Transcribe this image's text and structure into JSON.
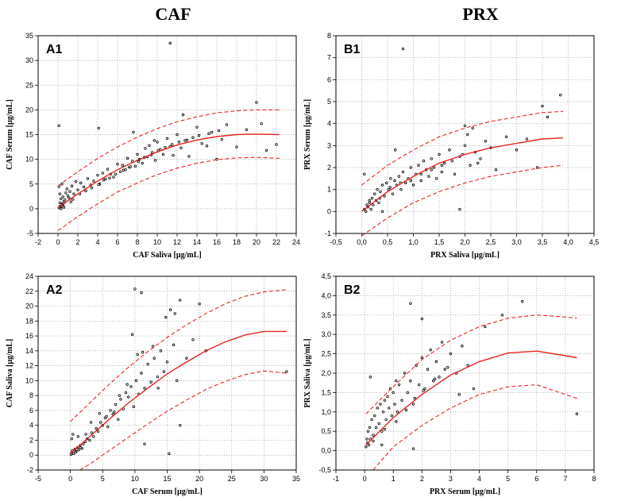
{
  "column_titles": [
    "CAF",
    "PRX"
  ],
  "chart_data": [
    {
      "type": "scatter",
      "panel_label": "A1",
      "xlabel": "CAF Saliva [µg/mL]",
      "ylabel": "CAF Serum [µg/mL]",
      "xlim": [
        -2,
        24
      ],
      "ylim": [
        -5,
        35
      ],
      "xticks": [
        -2,
        0,
        2,
        4,
        6,
        8,
        10,
        12,
        14,
        16,
        18,
        20,
        22,
        24
      ],
      "yticks": [
        -5,
        0,
        5,
        10,
        15,
        20,
        25,
        30,
        35
      ],
      "xtick_labels": [
        "-2",
        "0",
        "2",
        "4",
        "6",
        "8",
        "10",
        "12",
        "14",
        "16",
        "18",
        "20",
        "22",
        "24"
      ],
      "ytick_labels": [
        "-5",
        "0",
        "5",
        "10",
        "15",
        "20",
        "25",
        "30",
        "35"
      ],
      "grid": "dotted",
      "fit": {
        "x": [
          0,
          2,
          4,
          6,
          8,
          10,
          12,
          14,
          16,
          18,
          20,
          22.3
        ],
        "y": [
          0.2,
          3.0,
          5.6,
          7.9,
          9.8,
          11.5,
          12.9,
          13.9,
          14.6,
          15.0,
          15.1,
          15.0
        ]
      },
      "fit_upper": {
        "x": [
          0,
          2,
          4,
          6,
          8,
          10,
          12,
          14,
          16,
          18,
          20,
          22.3
        ],
        "y": [
          4.6,
          7.5,
          10.2,
          12.5,
          14.5,
          16.2,
          17.6,
          18.6,
          19.4,
          19.8,
          20.0,
          20.0
        ]
      },
      "fit_lower": {
        "x": [
          0,
          2,
          4,
          6,
          8,
          10,
          12,
          14,
          16,
          18,
          20,
          22.3
        ],
        "y": [
          -4.4,
          -1.6,
          1.0,
          3.4,
          5.2,
          6.9,
          8.2,
          9.2,
          9.9,
          10.3,
          10.4,
          10.2
        ]
      },
      "points": {
        "x": [
          0.1,
          0.2,
          0.3,
          0.4,
          0.5,
          0.6,
          0.2,
          0.3,
          0.5,
          0.7,
          0.8,
          1.0,
          0.1,
          0.4,
          0.9,
          1.2,
          1.4,
          1.6,
          1.8,
          2.0,
          2.3,
          2.6,
          3.0,
          3.3,
          3.6,
          4.0,
          4.2,
          4.5,
          4.8,
          5.0,
          5.3,
          5.6,
          6.0,
          6.3,
          6.5,
          6.8,
          7.0,
          7.2,
          7.5,
          7.8,
          8.0,
          8.2,
          8.5,
          8.8,
          9.0,
          9.2,
          9.5,
          9.8,
          10.0,
          10.3,
          10.6,
          11.0,
          11.3,
          11.6,
          12.0,
          12.4,
          12.8,
          13.2,
          13.6,
          14.0,
          14.5,
          15.0,
          15.5,
          16.0,
          16.5,
          17.0,
          18.0,
          19.0,
          20.0,
          20.5,
          21.0,
          22.0,
          0.2,
          0.5,
          1.1,
          1.5,
          2.2,
          2.8,
          3.4,
          4.1,
          4.6,
          5.2,
          5.8,
          6.6,
          7.3,
          8.1,
          8.7,
          9.4,
          10.1,
          10.8,
          11.5,
          12.2,
          13.0,
          14.2,
          15.2,
          16.2,
          0.1,
          4.1,
          11.3,
          0.3,
          0.6,
          1.3,
          7.6,
          9.7,
          12.6
        ],
        "y": [
          0.2,
          0.5,
          0.1,
          1.0,
          0.6,
          1.5,
          3.0,
          2.0,
          2.4,
          1.8,
          3.2,
          2.6,
          4.5,
          5.0,
          4.0,
          3.5,
          4.6,
          3.0,
          5.5,
          3.8,
          5.2,
          4.4,
          6.1,
          4.8,
          5.6,
          6.8,
          5.0,
          7.2,
          6.0,
          8.0,
          7.0,
          6.4,
          9.0,
          7.5,
          8.8,
          7.9,
          10.2,
          8.4,
          9.6,
          8.6,
          11.0,
          10.0,
          9.2,
          12.2,
          10.5,
          12.8,
          11.4,
          9.8,
          13.5,
          12.0,
          11.0,
          14.2,
          12.6,
          10.8,
          15.0,
          12.3,
          13.8,
          10.6,
          14.4,
          16.5,
          13.2,
          12.7,
          15.5,
          10.0,
          14.0,
          17.0,
          12.5,
          16.0,
          21.5,
          17.2,
          11.8,
          13.0,
          1.2,
          0.9,
          2.2,
          1.9,
          3.0,
          3.6,
          4.2,
          4.9,
          5.8,
          6.2,
          7.0,
          7.8,
          8.5,
          9.5,
          10.4,
          10.9,
          11.8,
          12.4,
          13.0,
          13.5,
          13.9,
          14.8,
          15.2,
          15.8,
          16.8,
          16.3,
          33.5,
          0.0,
          0.3,
          1.4,
          15.5,
          13.8,
          19.0
        ]
      }
    },
    {
      "type": "scatter",
      "panel_label": "B1",
      "xlabel": "PRX Saliva [µg/mL]",
      "ylabel": "PRX Serum [µg/mL]",
      "xlim": [
        -0.5,
        4.5
      ],
      "ylim": [
        -1,
        8
      ],
      "xticks": [
        -0.5,
        0.0,
        0.5,
        1.0,
        1.5,
        2.0,
        2.5,
        3.0,
        3.5,
        4.0,
        4.5
      ],
      "yticks": [
        -1,
        0,
        1,
        2,
        3,
        4,
        5,
        6,
        7,
        8
      ],
      "xtick_labels": [
        "-0,5",
        "0,0",
        "0,5",
        "1,0",
        "1,5",
        "2,0",
        "2,5",
        "3,0",
        "3,5",
        "4,0",
        "4,5"
      ],
      "ytick_labels": [
        "-1",
        "0",
        "1",
        "2",
        "3",
        "4",
        "5",
        "6",
        "7",
        "8"
      ],
      "grid": "dotted",
      "fit": {
        "x": [
          0,
          0.5,
          1.0,
          1.5,
          2.0,
          2.5,
          3.0,
          3.5,
          3.9
        ],
        "y": [
          0.0,
          0.9,
          1.6,
          2.2,
          2.6,
          2.9,
          3.1,
          3.3,
          3.35
        ]
      },
      "fit_upper": {
        "x": [
          0,
          0.5,
          1.0,
          1.5,
          2.0,
          2.5,
          3.0,
          3.5,
          3.9
        ],
        "y": [
          1.2,
          2.1,
          2.8,
          3.4,
          3.8,
          4.1,
          4.3,
          4.5,
          4.55
        ]
      },
      "fit_lower": {
        "x": [
          0,
          0.5,
          1.0,
          1.5,
          2.0,
          2.5,
          3.0,
          3.5,
          3.9
        ],
        "y": [
          -1.1,
          -0.3,
          0.4,
          0.9,
          1.3,
          1.6,
          1.8,
          2.0,
          2.1
        ]
      },
      "points": {
        "x": [
          0.05,
          0.08,
          0.1,
          0.12,
          0.15,
          0.18,
          0.2,
          0.22,
          0.25,
          0.28,
          0.3,
          0.33,
          0.36,
          0.4,
          0.44,
          0.48,
          0.52,
          0.56,
          0.6,
          0.64,
          0.68,
          0.72,
          0.76,
          0.8,
          0.85,
          0.9,
          0.95,
          1.0,
          1.05,
          1.1,
          1.15,
          1.2,
          1.25,
          1.3,
          1.35,
          1.4,
          1.45,
          1.5,
          1.55,
          1.6,
          1.7,
          1.8,
          1.9,
          2.0,
          2.1,
          2.2,
          2.3,
          2.4,
          2.5,
          2.6,
          2.8,
          3.0,
          3.2,
          3.4,
          3.6,
          3.85,
          0.15,
          0.35,
          0.55,
          0.75,
          0.95,
          1.15,
          1.35,
          1.55,
          1.75,
          1.95,
          2.05,
          2.15,
          2.25,
          0.8,
          1.9,
          2.0,
          3.5,
          0.05,
          0.4,
          0.65
        ],
        "y": [
          0.1,
          0.0,
          0.3,
          0.2,
          0.5,
          0.1,
          0.6,
          0.3,
          0.8,
          0.5,
          1.0,
          0.4,
          0.9,
          1.2,
          0.7,
          1.3,
          1.0,
          1.5,
          0.8,
          1.4,
          1.2,
          1.6,
          1.0,
          1.8,
          1.3,
          1.5,
          2.0,
          1.2,
          1.7,
          2.1,
          1.4,
          2.3,
          1.9,
          1.6,
          2.4,
          2.0,
          1.5,
          2.6,
          1.8,
          2.2,
          2.8,
          1.7,
          2.5,
          3.0,
          2.1,
          2.7,
          2.4,
          3.2,
          2.9,
          1.9,
          3.4,
          2.8,
          3.3,
          2.0,
          4.3,
          5.3,
          0.4,
          0.6,
          1.1,
          1.3,
          1.4,
          1.7,
          1.9,
          2.1,
          2.3,
          2.6,
          3.5,
          3.8,
          2.2,
          7.4,
          0.1,
          3.9,
          4.8,
          1.7,
          0.0,
          2.8
        ]
      }
    },
    {
      "type": "scatter",
      "panel_label": "A2",
      "xlabel": "CAF Serum [µg/mL]",
      "ylabel": "CAF Saliva [µg/mL]",
      "xlim": [
        -5,
        35
      ],
      "ylim": [
        -2,
        24
      ],
      "xticks": [
        -5,
        0,
        5,
        10,
        15,
        20,
        25,
        30,
        35
      ],
      "yticks": [
        -2,
        0,
        2,
        4,
        6,
        8,
        10,
        12,
        14,
        16,
        18,
        20,
        22,
        24
      ],
      "xtick_labels": [
        "-5",
        "0",
        "5",
        "10",
        "15",
        "20",
        "25",
        "30",
        "35"
      ],
      "ytick_labels": [
        "-2",
        "0",
        "2",
        "4",
        "6",
        "8",
        "10",
        "12",
        "14",
        "16",
        "18",
        "20",
        "22",
        "24"
      ],
      "grid": "dotted",
      "fit": {
        "x": [
          0,
          3,
          6,
          9,
          12,
          15,
          18,
          21,
          24,
          27,
          30,
          33.5
        ],
        "y": [
          0.2,
          2.5,
          4.8,
          7.0,
          9.0,
          10.9,
          12.5,
          14.0,
          15.2,
          16.1,
          16.6,
          16.6
        ]
      },
      "fit_upper": {
        "x": [
          0,
          3,
          6,
          9,
          12,
          15,
          18,
          21,
          24,
          27,
          30,
          33.5
        ],
        "y": [
          4.5,
          7.0,
          9.5,
          11.8,
          13.9,
          15.8,
          17.5,
          19.0,
          20.3,
          21.3,
          21.9,
          22.2
        ]
      },
      "fit_lower": {
        "x": [
          1.5,
          3,
          6,
          9,
          12,
          15,
          18,
          21,
          24,
          27,
          30,
          33.5
        ],
        "y": [
          -2.0,
          -1.2,
          0.6,
          2.4,
          4.2,
          5.9,
          7.4,
          8.8,
          9.9,
          10.8,
          11.3,
          11.0
        ]
      },
      "points": {
        "x": [
          0.1,
          0.2,
          0.3,
          0.5,
          0.7,
          0.9,
          1.1,
          1.3,
          1.5,
          1.8,
          2.0,
          2.3,
          2.6,
          3.0,
          3.3,
          3.6,
          4.0,
          4.3,
          4.7,
          5.0,
          5.4,
          5.8,
          6.2,
          6.6,
          7.0,
          7.4,
          7.8,
          8.2,
          8.6,
          9.0,
          9.4,
          9.8,
          10.2,
          10.6,
          11.0,
          11.5,
          12.0,
          12.5,
          13.0,
          13.5,
          14.0,
          14.5,
          15.0,
          15.5,
          16.0,
          16.5,
          17.0,
          18.0,
          19.0,
          20.0,
          21.0,
          0.4,
          0.8,
          1.2,
          1.6,
          2.4,
          3.2,
          4.5,
          5.6,
          6.8,
          7.6,
          8.8,
          9.6,
          10.4,
          11.2,
          12.8,
          13.6,
          14.8,
          16.2,
          10.0,
          11.5,
          11.0,
          17.0,
          33.5,
          0.2,
          15.3
        ],
        "y": [
          0.1,
          0.3,
          0.6,
          0.2,
          0.8,
          0.5,
          1.0,
          0.7,
          1.3,
          0.9,
          1.5,
          1.8,
          2.2,
          2.0,
          3.0,
          2.5,
          3.6,
          3.2,
          4.4,
          4.0,
          5.0,
          3.8,
          6.0,
          5.5,
          6.8,
          4.8,
          7.5,
          6.2,
          8.4,
          7.8,
          9.2,
          6.5,
          10.0,
          8.2,
          11.0,
          9.0,
          12.2,
          9.8,
          13.0,
          10.5,
          14.0,
          11.2,
          12.5,
          19.5,
          14.8,
          10.0,
          20.8,
          13.0,
          15.5,
          20.3,
          14.0,
          2.8,
          0.4,
          2.5,
          1.0,
          2.8,
          4.4,
          5.6,
          5.2,
          5.8,
          8.0,
          9.5,
          16.2,
          13.5,
          13.8,
          14.6,
          9.0,
          18.5,
          19.0,
          22.3,
          1.5,
          21.8,
          4.0,
          11.2,
          2.2,
          0.2
        ]
      }
    },
    {
      "type": "scatter",
      "panel_label": "B2",
      "xlabel": "PRX Serum [µg/mL]",
      "ylabel": "PRX Saliva [µg/mL]",
      "xlim": [
        -1,
        8
      ],
      "ylim": [
        -0.5,
        4.5
      ],
      "xticks": [
        -1,
        0,
        1,
        2,
        3,
        4,
        5,
        6,
        7,
        8
      ],
      "yticks": [
        -0.5,
        0.0,
        0.5,
        1.0,
        1.5,
        2.0,
        2.5,
        3.0,
        3.5,
        4.0,
        4.5
      ],
      "xtick_labels": [
        "-1",
        "0",
        "1",
        "2",
        "3",
        "4",
        "5",
        "6",
        "7",
        "8"
      ],
      "ytick_labels": [
        "-0,5",
        "0,0",
        "0,5",
        "1,0",
        "1,5",
        "2,0",
        "2,5",
        "3,0",
        "3,5",
        "4,0",
        "4,5"
      ],
      "grid": "dotted",
      "fit": {
        "x": [
          0.05,
          1,
          2,
          3,
          4,
          5,
          6,
          7,
          7.4
        ],
        "y": [
          0.15,
          0.85,
          1.45,
          1.95,
          2.3,
          2.52,
          2.57,
          2.45,
          2.4
        ]
      },
      "fit_upper": {
        "x": [
          0.05,
          1,
          2,
          3,
          4,
          5,
          6,
          7,
          7.4
        ],
        "y": [
          0.95,
          1.65,
          2.35,
          2.85,
          3.2,
          3.42,
          3.5,
          3.45,
          3.42
        ]
      },
      "fit_lower": {
        "x": [
          0.3,
          1,
          2,
          3,
          4,
          5,
          6,
          7,
          7.4
        ],
        "y": [
          -0.5,
          0.1,
          0.65,
          1.1,
          1.45,
          1.65,
          1.7,
          1.45,
          1.35
        ]
      },
      "points": {
        "x": [
          0.05,
          0.08,
          0.1,
          0.12,
          0.15,
          0.18,
          0.2,
          0.25,
          0.3,
          0.35,
          0.4,
          0.45,
          0.5,
          0.55,
          0.6,
          0.65,
          0.7,
          0.75,
          0.8,
          0.85,
          0.9,
          0.95,
          1.0,
          1.05,
          1.1,
          1.15,
          1.2,
          1.3,
          1.4,
          1.5,
          1.6,
          1.7,
          1.8,
          1.9,
          2.0,
          2.1,
          2.2,
          2.3,
          2.4,
          2.5,
          2.6,
          2.7,
          2.8,
          3.0,
          3.2,
          3.4,
          3.6,
          3.8,
          4.2,
          4.8,
          5.5,
          7.4,
          0.3,
          0.7,
          1.1,
          1.45,
          1.75,
          2.05,
          2.45,
          2.9,
          3.3,
          1.6,
          1.7,
          2.0,
          0.2,
          0.6
        ],
        "y": [
          0.1,
          0.3,
          0.2,
          0.5,
          0.15,
          0.6,
          0.3,
          0.8,
          0.4,
          0.9,
          0.6,
          1.1,
          0.7,
          1.2,
          0.5,
          1.0,
          1.3,
          0.8,
          1.4,
          1.1,
          1.6,
          0.9,
          1.5,
          1.2,
          1.8,
          1.0,
          1.7,
          1.3,
          2.0,
          1.5,
          1.8,
          1.2,
          2.2,
          1.7,
          2.4,
          1.6,
          2.1,
          2.6,
          1.8,
          2.3,
          1.9,
          2.8,
          2.1,
          2.5,
          2.0,
          2.7,
          2.2,
          1.6,
          3.2,
          3.5,
          3.85,
          0.95,
          0.25,
          0.55,
          0.75,
          1.05,
          1.35,
          1.55,
          1.85,
          2.15,
          1.45,
          3.8,
          0.05,
          3.4,
          1.9,
          0.15
        ]
      }
    }
  ]
}
